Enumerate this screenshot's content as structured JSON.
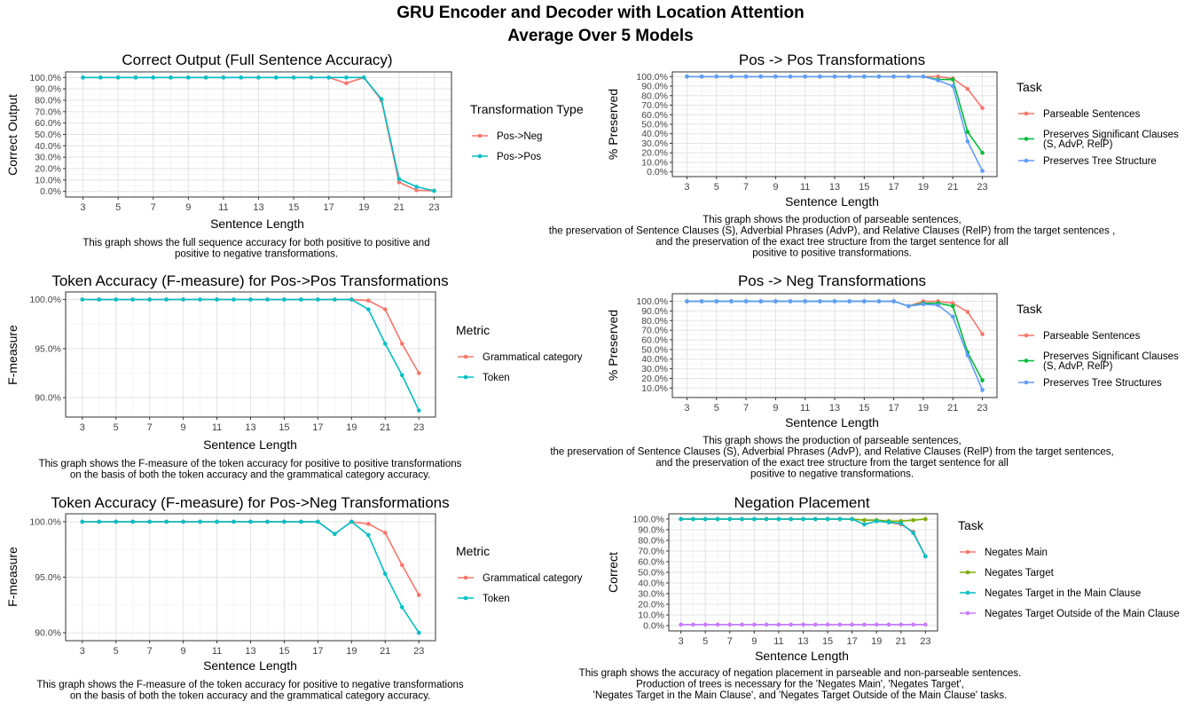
{
  "main_title": {
    "line1": "GRU Encoder and Decoder with Location Attention",
    "line2": "Average Over 5 Models"
  },
  "chart_data": [
    {
      "id": "p1",
      "type": "line",
      "title": "Correct Output (Full Sentence Accuracy)",
      "xlabel": "Sentence Length",
      "ylabel": "Correct Output",
      "x": [
        3,
        4,
        5,
        6,
        7,
        8,
        9,
        10,
        11,
        12,
        13,
        14,
        15,
        16,
        17,
        18,
        19,
        20,
        21,
        22,
        23
      ],
      "xticks": [
        "3",
        "5",
        "7",
        "9",
        "11",
        "13",
        "15",
        "17",
        "19",
        "21",
        "23"
      ],
      "ylim": [
        0,
        1
      ],
      "yticks": [
        "0.0%",
        "10.0%",
        "20.0%",
        "30.0%",
        "40.0%",
        "50.0%",
        "60.0%",
        "70.0%",
        "80.0%",
        "90.0%",
        "100.0%"
      ],
      "legend_title": "Transformation Type",
      "series": [
        {
          "name": "Pos->Neg",
          "color": "#F8766D",
          "values": [
            1,
            1,
            1,
            1,
            1,
            1,
            1,
            1,
            1,
            1,
            1,
            1,
            1,
            1,
            1,
            0.95,
            1,
            0.8,
            0.08,
            0.01,
            0.005
          ]
        },
        {
          "name": "Pos->Pos",
          "color": "#00BFC4",
          "values": [
            1,
            1,
            1,
            1,
            1,
            1,
            1,
            1,
            1,
            1,
            1,
            1,
            1,
            1,
            1,
            1,
            1,
            0.81,
            0.11,
            0.04,
            0.005
          ]
        }
      ],
      "caption": [
        "This graph shows the full sequence accuracy for both positive to positive and",
        "positive to negative transformations."
      ]
    },
    {
      "id": "p2",
      "type": "line",
      "title": "Pos -> Pos Transformations",
      "xlabel": "Sentence Length",
      "ylabel": "% Preserved",
      "x": [
        3,
        4,
        5,
        6,
        7,
        8,
        9,
        10,
        11,
        12,
        13,
        14,
        15,
        16,
        17,
        18,
        19,
        20,
        21,
        22,
        23
      ],
      "xticks": [
        "3",
        "5",
        "7",
        "9",
        "11",
        "13",
        "15",
        "17",
        "19",
        "21",
        "23"
      ],
      "ylim": [
        0,
        1
      ],
      "yticks": [
        "0.0%",
        "10.0%",
        "20.0%",
        "30.0%",
        "40.0%",
        "50.0%",
        "60.0%",
        "70.0%",
        "80.0%",
        "90.0%",
        "100.0%"
      ],
      "legend_title": "Task",
      "series": [
        {
          "name": "Parseable Sentences",
          "color": "#F8766D",
          "values": [
            1,
            1,
            1,
            1,
            1,
            1,
            1,
            1,
            1,
            1,
            1,
            1,
            1,
            1,
            1,
            1,
            1,
            1,
            0.98,
            0.87,
            0.67
          ]
        },
        {
          "name": "Preserves Significant Clauses\n(S, AdvP, RelP)",
          "color": "#00BA38",
          "values": [
            1,
            1,
            1,
            1,
            1,
            1,
            1,
            1,
            1,
            1,
            1,
            1,
            1,
            1,
            1,
            1,
            1,
            0.97,
            0.97,
            0.42,
            0.2
          ]
        },
        {
          "name": "Preserves Tree Structure",
          "color": "#619CFF",
          "values": [
            1,
            1,
            1,
            1,
            1,
            1,
            1,
            1,
            1,
            1,
            1,
            1,
            1,
            1,
            1,
            1,
            1,
            0.96,
            0.9,
            0.32,
            0.01
          ]
        }
      ],
      "caption": [
        "This graph shows the production of parseable sentences,",
        "the preservation of Sentence Clauses (S), Adverbial Phrases (AdvP), and Relative Clauses (RelP) from the target sentences ,",
        "and the preservation of the exact tree structure from the target sentence for all",
        "positive to positive transformations."
      ]
    },
    {
      "id": "p3",
      "type": "line",
      "title": "Token Accuracy (F-measure) for Pos->Pos Transformations",
      "xlabel": "Sentence Length",
      "ylabel": "F-measure",
      "x": [
        3,
        4,
        5,
        6,
        7,
        8,
        9,
        10,
        11,
        12,
        13,
        14,
        15,
        16,
        17,
        18,
        19,
        20,
        21,
        22,
        23
      ],
      "xticks": [
        "3",
        "5",
        "7",
        "9",
        "11",
        "13",
        "15",
        "17",
        "19",
        "21",
        "23"
      ],
      "ylim": [
        0.886,
        1.002
      ],
      "yticks": [
        "90.0%",
        "95.0%",
        "100.0%"
      ],
      "ytick_values": [
        0.9,
        0.95,
        1.0
      ],
      "legend_title": "Metric",
      "series": [
        {
          "name": "Grammatical category",
          "color": "#F8766D",
          "values": [
            1,
            1,
            1,
            1,
            1,
            1,
            1,
            1,
            1,
            1,
            1,
            1,
            1,
            1,
            1,
            1,
            1,
            0.999,
            0.99,
            0.955,
            0.925
          ]
        },
        {
          "name": "Token",
          "color": "#00BFC4",
          "values": [
            1,
            1,
            1,
            1,
            1,
            1,
            1,
            1,
            1,
            1,
            1,
            1,
            1,
            1,
            1,
            1,
            1,
            0.99,
            0.955,
            0.923,
            0.887
          ]
        }
      ],
      "caption": [
        "This graph shows the F-measure of the token accuracy for positive to positive transformations",
        "on the basis of both the token accuracy and the grammatical category accuracy."
      ]
    },
    {
      "id": "p4",
      "type": "line",
      "title": "Pos -> Neg Transformations",
      "xlabel": "Sentence Length",
      "ylabel": "% Preserved",
      "x": [
        3,
        4,
        5,
        6,
        7,
        8,
        9,
        10,
        11,
        12,
        13,
        14,
        15,
        16,
        17,
        18,
        19,
        20,
        21,
        22,
        23
      ],
      "xticks": [
        "3",
        "5",
        "7",
        "9",
        "11",
        "13",
        "15",
        "17",
        "19",
        "21",
        "23"
      ],
      "ylim": [
        0.05,
        1.03
      ],
      "yticks": [
        "10.0%",
        "20.0%",
        "30.0%",
        "40.0%",
        "50.0%",
        "60.0%",
        "70.0%",
        "80.0%",
        "90.0%",
        "100.0%"
      ],
      "ytick_values": [
        0.1,
        0.2,
        0.3,
        0.4,
        0.5,
        0.6,
        0.7,
        0.8,
        0.9,
        1.0
      ],
      "legend_title": "Task",
      "series": [
        {
          "name": "Parseable Sentences",
          "color": "#F8766D",
          "values": [
            1,
            1,
            1,
            1,
            1,
            1,
            1,
            1,
            1,
            1,
            1,
            1,
            1,
            1,
            1,
            0.95,
            1,
            1,
            0.98,
            0.89,
            0.66
          ]
        },
        {
          "name": "Preserves Significant Clauses\n(S, AdvP, RelP)",
          "color": "#00BA38",
          "values": [
            1,
            1,
            1,
            1,
            1,
            1,
            1,
            1,
            1,
            1,
            1,
            1,
            1,
            1,
            1,
            0.95,
            0.98,
            0.98,
            0.95,
            0.47,
            0.18
          ]
        },
        {
          "name": "Preserves Tree Structures",
          "color": "#619CFF",
          "values": [
            1,
            1,
            1,
            1,
            1,
            1,
            1,
            1,
            1,
            1,
            1,
            1,
            1,
            1,
            1,
            0.95,
            0.97,
            0.96,
            0.84,
            0.44,
            0.08
          ]
        }
      ],
      "caption": [
        "This graph shows the production of parseable sentences,",
        "the preservation of Sentence Clauses (S), Adverbial Phrases (AdvP), and Relative Clauses (RelP) from the target sentences,",
        "and the preservation of the exact tree structure from the target sentence for all",
        "positive to negative transformations."
      ]
    },
    {
      "id": "p5",
      "type": "line",
      "title": "Token Accuracy (F-measure) for Pos->Neg Transformations",
      "xlabel": "Sentence Length",
      "ylabel": "F-measure",
      "x": [
        3,
        4,
        5,
        6,
        7,
        8,
        9,
        10,
        11,
        12,
        13,
        14,
        15,
        16,
        17,
        18,
        19,
        20,
        21,
        22,
        23
      ],
      "xticks": [
        "3",
        "5",
        "7",
        "9",
        "11",
        "13",
        "15",
        "17",
        "19",
        "21",
        "23"
      ],
      "ylim": [
        0.898,
        1.002
      ],
      "yticks": [
        "90.0%",
        "95.0%",
        "100.0%"
      ],
      "ytick_values": [
        0.9,
        0.95,
        1.0
      ],
      "legend_title": "Metric",
      "series": [
        {
          "name": "Grammatical category",
          "color": "#F8766D",
          "values": [
            1,
            1,
            1,
            1,
            1,
            1,
            1,
            1,
            1,
            1,
            1,
            1,
            1,
            1,
            1,
            0.989,
            1,
            0.998,
            0.99,
            0.961,
            0.934
          ]
        },
        {
          "name": "Token",
          "color": "#00BFC4",
          "values": [
            1,
            1,
            1,
            1,
            1,
            1,
            1,
            1,
            1,
            1,
            1,
            1,
            1,
            1,
            1,
            0.989,
            1,
            0.988,
            0.953,
            0.923,
            0.9
          ]
        }
      ],
      "caption": [
        "This graph shows the F-measure of the token accuracy for positive to negative transformations",
        "on the basis of both the token accuracy and the grammatical category accuracy."
      ]
    },
    {
      "id": "p6",
      "type": "line",
      "title": "Negation Placement",
      "xlabel": "Sentence Length",
      "ylabel": "Correct",
      "x": [
        3,
        4,
        5,
        6,
        7,
        8,
        9,
        10,
        11,
        12,
        13,
        14,
        15,
        16,
        17,
        18,
        19,
        20,
        21,
        22,
        23
      ],
      "xticks": [
        "3",
        "5",
        "7",
        "9",
        "11",
        "13",
        "15",
        "17",
        "19",
        "21",
        "23"
      ],
      "ylim": [
        0,
        1
      ],
      "yticks": [
        "0.0%",
        "10.0%",
        "20.0%",
        "30.0%",
        "40.0%",
        "50.0%",
        "60.0%",
        "70.0%",
        "80.0%",
        "90.0%",
        "100.0%"
      ],
      "legend_title": "Task",
      "series": [
        {
          "name": "Negates Main",
          "color": "#F8766D",
          "values": [
            1,
            1,
            1,
            1,
            1,
            1,
            1,
            1,
            1,
            1,
            1,
            1,
            1,
            1,
            1,
            0.95,
            0.98,
            0.97,
            0.95,
            0.88,
            0.65
          ]
        },
        {
          "name": "Negates Target",
          "color": "#7CAE00",
          "values": [
            1,
            1,
            1,
            1,
            1,
            1,
            1,
            1,
            1,
            1,
            1,
            1,
            1,
            1,
            1,
            0.99,
            0.99,
            0.98,
            0.98,
            0.99,
            1
          ]
        },
        {
          "name": "Negates Target in the Main Clause",
          "color": "#00BFC4",
          "values": [
            1,
            1,
            1,
            1,
            1,
            1,
            1,
            1,
            1,
            1,
            1,
            1,
            1,
            1,
            1,
            0.95,
            0.98,
            0.97,
            0.96,
            0.87,
            0.65
          ]
        },
        {
          "name": "Negates Target Outside of the Main Clause",
          "color": "#C77CFF",
          "values": [
            0.01,
            0.01,
            0.01,
            0.01,
            0.01,
            0.01,
            0.01,
            0.01,
            0.01,
            0.01,
            0.01,
            0.01,
            0.01,
            0.01,
            0.01,
            0.01,
            0.01,
            0.01,
            0.01,
            0.01,
            0.01
          ]
        }
      ],
      "caption": [
        "This graph shows the accuracy of negation placement in parseable and non-parseable sentences.",
        "Production of trees is necessary for the 'Negates Main', 'Negates Target',",
        "'Negates Target in the Main Clause', and 'Negates Target Outside of the Main Clause' tasks."
      ]
    }
  ]
}
